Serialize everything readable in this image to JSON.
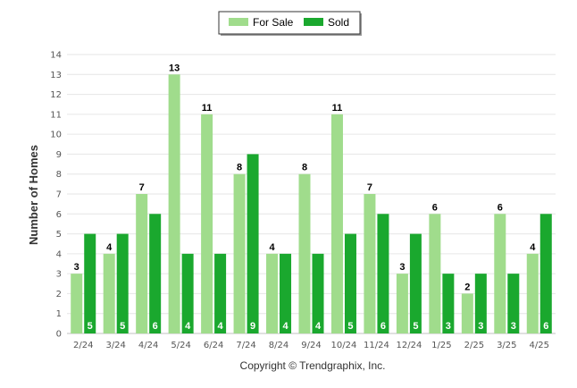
{
  "chart_data": {
    "type": "bar",
    "categories": [
      "2/24",
      "3/24",
      "4/24",
      "5/24",
      "6/24",
      "7/24",
      "8/24",
      "9/24",
      "10/24",
      "11/24",
      "12/24",
      "1/25",
      "2/25",
      "3/25",
      "4/25"
    ],
    "series": [
      {
        "name": "For Sale",
        "color": "#a0dc8c",
        "values": [
          3,
          4,
          7,
          13,
          11,
          8,
          4,
          8,
          11,
          7,
          3,
          6,
          2,
          6,
          4
        ]
      },
      {
        "name": "Sold",
        "color": "#1aa82e",
        "values": [
          5,
          5,
          6,
          4,
          4,
          9,
          4,
          4,
          5,
          6,
          5,
          3,
          3,
          3,
          6
        ]
      }
    ],
    "ylabel": "Number of Homes",
    "xlabel": "",
    "ylim": [
      0,
      14
    ],
    "yticks": [
      0,
      1,
      2,
      3,
      4,
      5,
      6,
      7,
      8,
      9,
      10,
      11,
      12,
      13,
      14
    ],
    "grid": true,
    "legend": "top-center"
  },
  "credit": "Copyright © Trendgraphix, Inc."
}
